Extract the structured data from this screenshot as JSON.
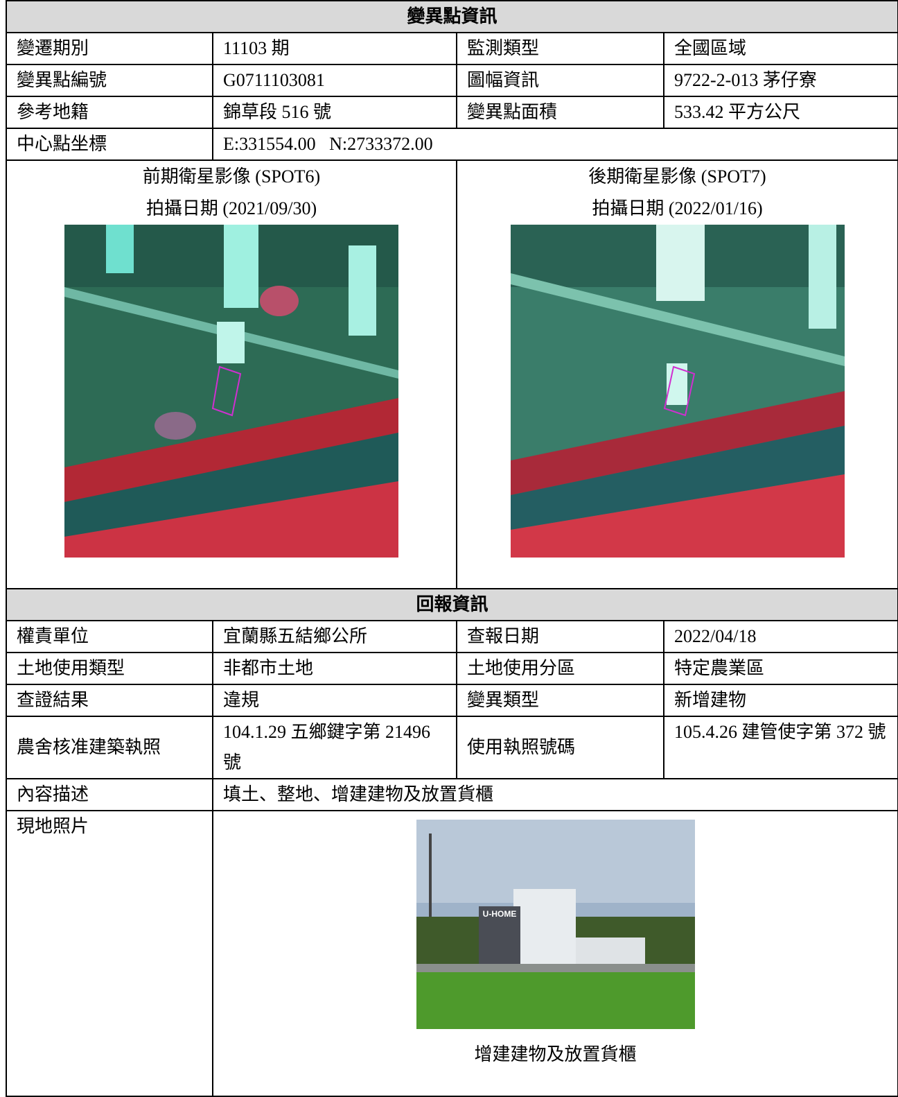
{
  "change_info": {
    "title": "變異點資訊",
    "rows": [
      [
        "變遷期別",
        "11103 期",
        "監測類型",
        "全國區域"
      ],
      [
        "變異點編號",
        "G0711103081",
        "圖幅資訊",
        "9722-2-013 茅仔寮"
      ],
      [
        "參考地籍",
        "錦草段 516 號",
        "變異點面積",
        "533.42 平方公尺"
      ]
    ],
    "coords_label": "中心點坐標",
    "coords": "E:331554.00   N:2733372.00",
    "before_image": {
      "label": "前期衛星影像 (SPOT6)",
      "date": "拍攝日期 (2021/09/30)"
    },
    "after_image": {
      "label": "後期衛星影像 (SPOT7)",
      "date": "拍攝日期 (2022/01/16)"
    }
  },
  "report_info": {
    "title": "回報資訊",
    "rows": [
      [
        "權責單位",
        "宜蘭縣五結鄉公所",
        "查報日期",
        "2022/04/18"
      ],
      [
        "土地使用類型",
        "非都市土地",
        "土地使用分區",
        "特定農業區"
      ],
      [
        "查證結果",
        "違規",
        "變異類型",
        "新增建物"
      ],
      [
        "農舍核准建築執照",
        "104.1.29 五鄉鍵字第 21496 號",
        "使用執照號碼",
        "105.4.26 建管使字第 372 號"
      ]
    ],
    "description_label": "內容描述",
    "description": "填土、整地、增建建物及放置貨櫃",
    "photo_label": "現地照片",
    "photo_sign": "U-HOME",
    "photo_caption": "增建建物及放置貨櫃"
  }
}
